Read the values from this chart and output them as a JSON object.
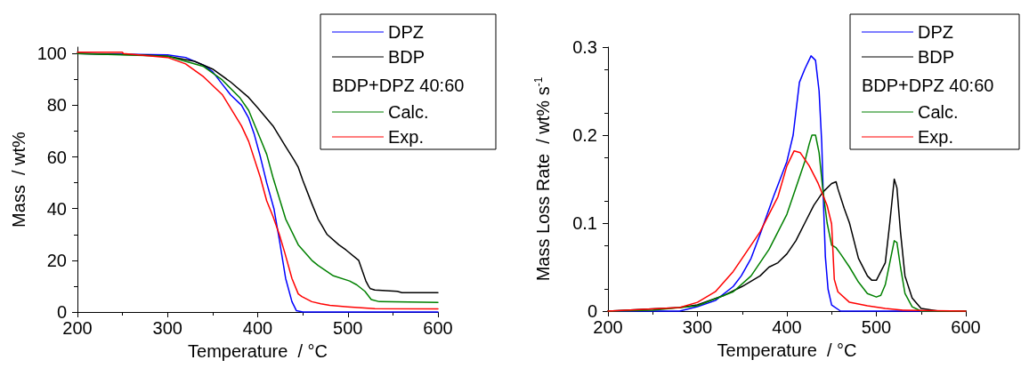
{
  "chart_data": [
    {
      "type": "line",
      "xlabel": "Temperature  / °C",
      "ylabel": "Mass  / wt%",
      "legend_title": "BDP+DPZ 40:60",
      "xlim": [
        200,
        600
      ],
      "xticks": [
        200,
        300,
        400,
        500,
        600
      ],
      "ylim": [
        0,
        102.5
      ],
      "yticks": [
        0,
        20,
        40,
        60,
        80,
        100
      ],
      "grid": false,
      "legend": "top right",
      "marker": "none",
      "line_style": "solid",
      "series": [
        {
          "name": "DPZ",
          "color": "#0000ff",
          "x": [
            200,
            300,
            320,
            340,
            350,
            361,
            370,
            382,
            390,
            396,
            403,
            410,
            418,
            424,
            431,
            438,
            443,
            450,
            600
          ],
          "values": [
            100,
            99.5,
            98.5,
            95.5,
            93,
            88,
            84,
            80,
            75,
            69,
            60,
            50,
            40,
            28,
            13,
            4,
            0.5,
            0,
            0
          ]
        },
        {
          "name": "BDP",
          "color": "#000000",
          "x": [
            200,
            270,
            300,
            330,
            350,
            370,
            390,
            400,
            417,
            431,
            440,
            445,
            450,
            460,
            467,
            477,
            490,
            498,
            512,
            515,
            520,
            523,
            525,
            530,
            555,
            560,
            600
          ],
          "values": [
            100,
            99.5,
            99,
            97,
            94,
            89,
            83,
            79,
            72,
            64,
            59,
            56,
            51,
            42,
            36,
            30,
            26,
            24,
            20,
            17,
            12,
            10,
            9,
            8.5,
            8,
            7.5,
            7.5
          ]
        },
        {
          "name": "Calc.",
          "color": "#008000",
          "x": [
            200,
            300,
            340,
            360,
            380,
            390,
            403,
            410,
            417,
            431,
            445,
            460,
            467,
            484,
            502,
            510,
            519,
            526,
            535,
            600
          ],
          "values": [
            100,
            99,
            95,
            90,
            83,
            78,
            67,
            61,
            52,
            36,
            26,
            20,
            18,
            14,
            12,
            10.5,
            8,
            4.8,
            4,
            3.7
          ]
        },
        {
          "name": "Exp.",
          "color": "#ff0000",
          "x": [
            200,
            250,
            251,
            300,
            320,
            340,
            361,
            382,
            390,
            403,
            410,
            417,
            424,
            430,
            438,
            445,
            449,
            460,
            470,
            480,
            500,
            530,
            600
          ],
          "values": [
            100.5,
            100.5,
            100,
            98.5,
            96,
            91,
            84,
            72,
            66,
            52,
            43,
            37,
            30,
            23,
            13,
            7,
            6,
            4,
            3.2,
            2.6,
            2,
            1.3,
            1.2
          ]
        }
      ]
    },
    {
      "type": "line",
      "xlabel": "Temperature  / °C",
      "ylabel": "Mass Loss Rate  / wt% s$^{-1}$",
      "legend_title": "BDP+DPZ 40:60",
      "xlim": [
        200,
        600
      ],
      "xticks": [
        200,
        300,
        400,
        500,
        600
      ],
      "ylim": [
        0,
        0.3
      ],
      "yticks": [
        0.0,
        0.1,
        0.2,
        0.3
      ],
      "grid": false,
      "legend": "top right",
      "marker": "none",
      "line_style": "solid",
      "series": [
        {
          "name": "DPZ",
          "color": "#0000ff",
          "x": [
            200,
            280,
            300,
            320,
            340,
            349,
            360,
            371,
            385,
            400,
            407,
            414,
            420,
            427,
            432,
            436,
            439,
            441,
            443,
            446,
            450,
            460,
            600
          ],
          "values": [
            0,
            0,
            0.005,
            0.012,
            0.028,
            0.04,
            0.06,
            0.09,
            0.13,
            0.17,
            0.2,
            0.26,
            0.275,
            0.29,
            0.285,
            0.25,
            0.19,
            0.12,
            0.062,
            0.025,
            0.007,
            0,
            0
          ]
        },
        {
          "name": "BDP",
          "color": "#000000",
          "x": [
            200,
            240,
            280,
            300,
            330,
            350,
            370,
            380,
            390,
            400,
            410,
            420,
            430,
            440,
            450,
            455,
            457,
            464,
            470,
            480,
            490,
            495,
            500,
            510,
            515,
            520,
            523,
            527,
            532,
            540,
            550,
            570,
            600
          ],
          "values": [
            0,
            0.002,
            0.004,
            0.007,
            0.018,
            0.028,
            0.04,
            0.05,
            0.055,
            0.065,
            0.08,
            0.1,
            0.12,
            0.135,
            0.145,
            0.147,
            0.139,
            0.117,
            0.1,
            0.06,
            0.04,
            0.035,
            0.035,
            0.055,
            0.1,
            0.15,
            0.14,
            0.09,
            0.04,
            0.015,
            0.003,
            0,
            0
          ]
        },
        {
          "name": "Calc.",
          "color": "#008000",
          "x": [
            200,
            250,
            300,
            340,
            360,
            380,
            390,
            400,
            410,
            420,
            425,
            428,
            432,
            436,
            440,
            445,
            450,
            455,
            460,
            470,
            480,
            490,
            500,
            505,
            510,
            515,
            520,
            523,
            527,
            532,
            540,
            550,
            600
          ],
          "values": [
            0,
            0.001,
            0.006,
            0.022,
            0.04,
            0.07,
            0.09,
            0.11,
            0.14,
            0.17,
            0.19,
            0.2,
            0.2,
            0.18,
            0.14,
            0.1,
            0.075,
            0.072,
            0.065,
            0.05,
            0.033,
            0.02,
            0.016,
            0.018,
            0.03,
            0.055,
            0.08,
            0.078,
            0.05,
            0.02,
            0.005,
            0,
            0
          ]
        },
        {
          "name": "Exp.",
          "color": "#ff0000",
          "x": [
            200,
            240,
            280,
            300,
            320,
            340,
            350,
            370,
            390,
            400,
            408,
            415,
            425,
            435,
            445,
            450,
            453,
            457,
            470,
            490,
            510,
            530,
            600
          ],
          "values": [
            0,
            0.002,
            0.004,
            0.01,
            0.022,
            0.045,
            0.06,
            0.09,
            0.13,
            0.165,
            0.182,
            0.18,
            0.165,
            0.145,
            0.12,
            0.099,
            0.036,
            0.022,
            0.01,
            0.006,
            0.003,
            0.001,
            0
          ]
        }
      ]
    }
  ]
}
